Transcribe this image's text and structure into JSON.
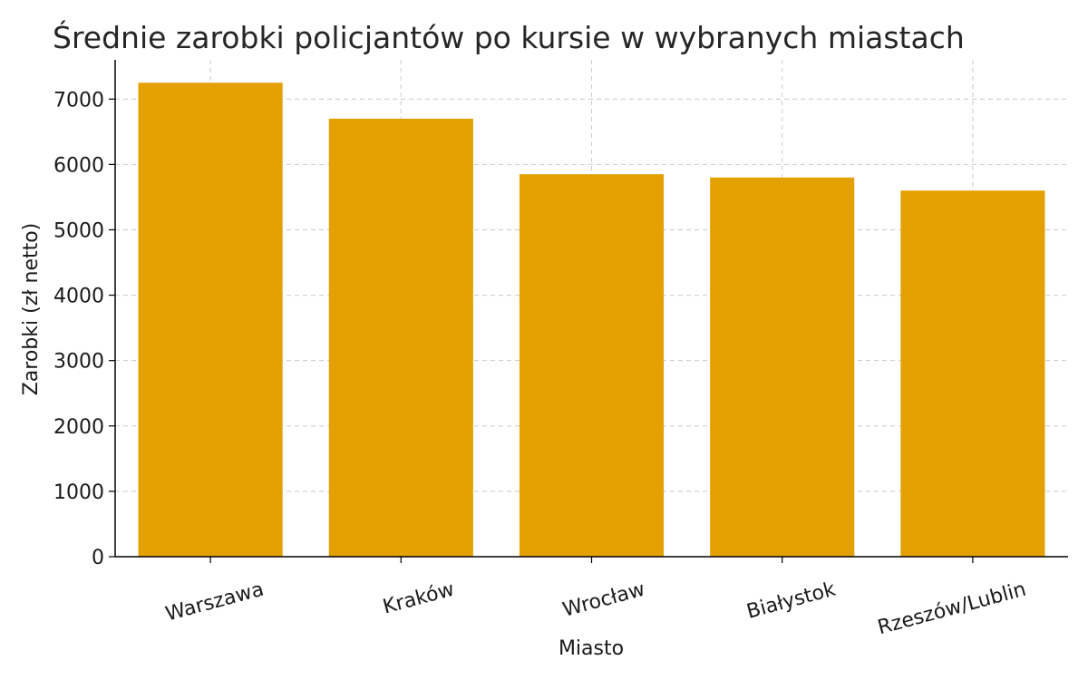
{
  "chart_data": {
    "type": "bar",
    "title": "Średnie zarobki policjantów po kursie w wybranych miastach",
    "xlabel": "Miasto",
    "ylabel": "Zarobki (zł netto)",
    "categories": [
      "Warszawa",
      "Kraków",
      "Wrocław",
      "Białystok",
      "Rzeszów/Lublin"
    ],
    "values": [
      7250,
      6700,
      5850,
      5800,
      5600
    ],
    "ylim": [
      0,
      7600
    ],
    "yticks": [
      0,
      1000,
      2000,
      3000,
      4000,
      5000,
      6000,
      7000
    ],
    "grid": true,
    "bar_color": "#E3A000",
    "xtick_rotation": 15
  }
}
